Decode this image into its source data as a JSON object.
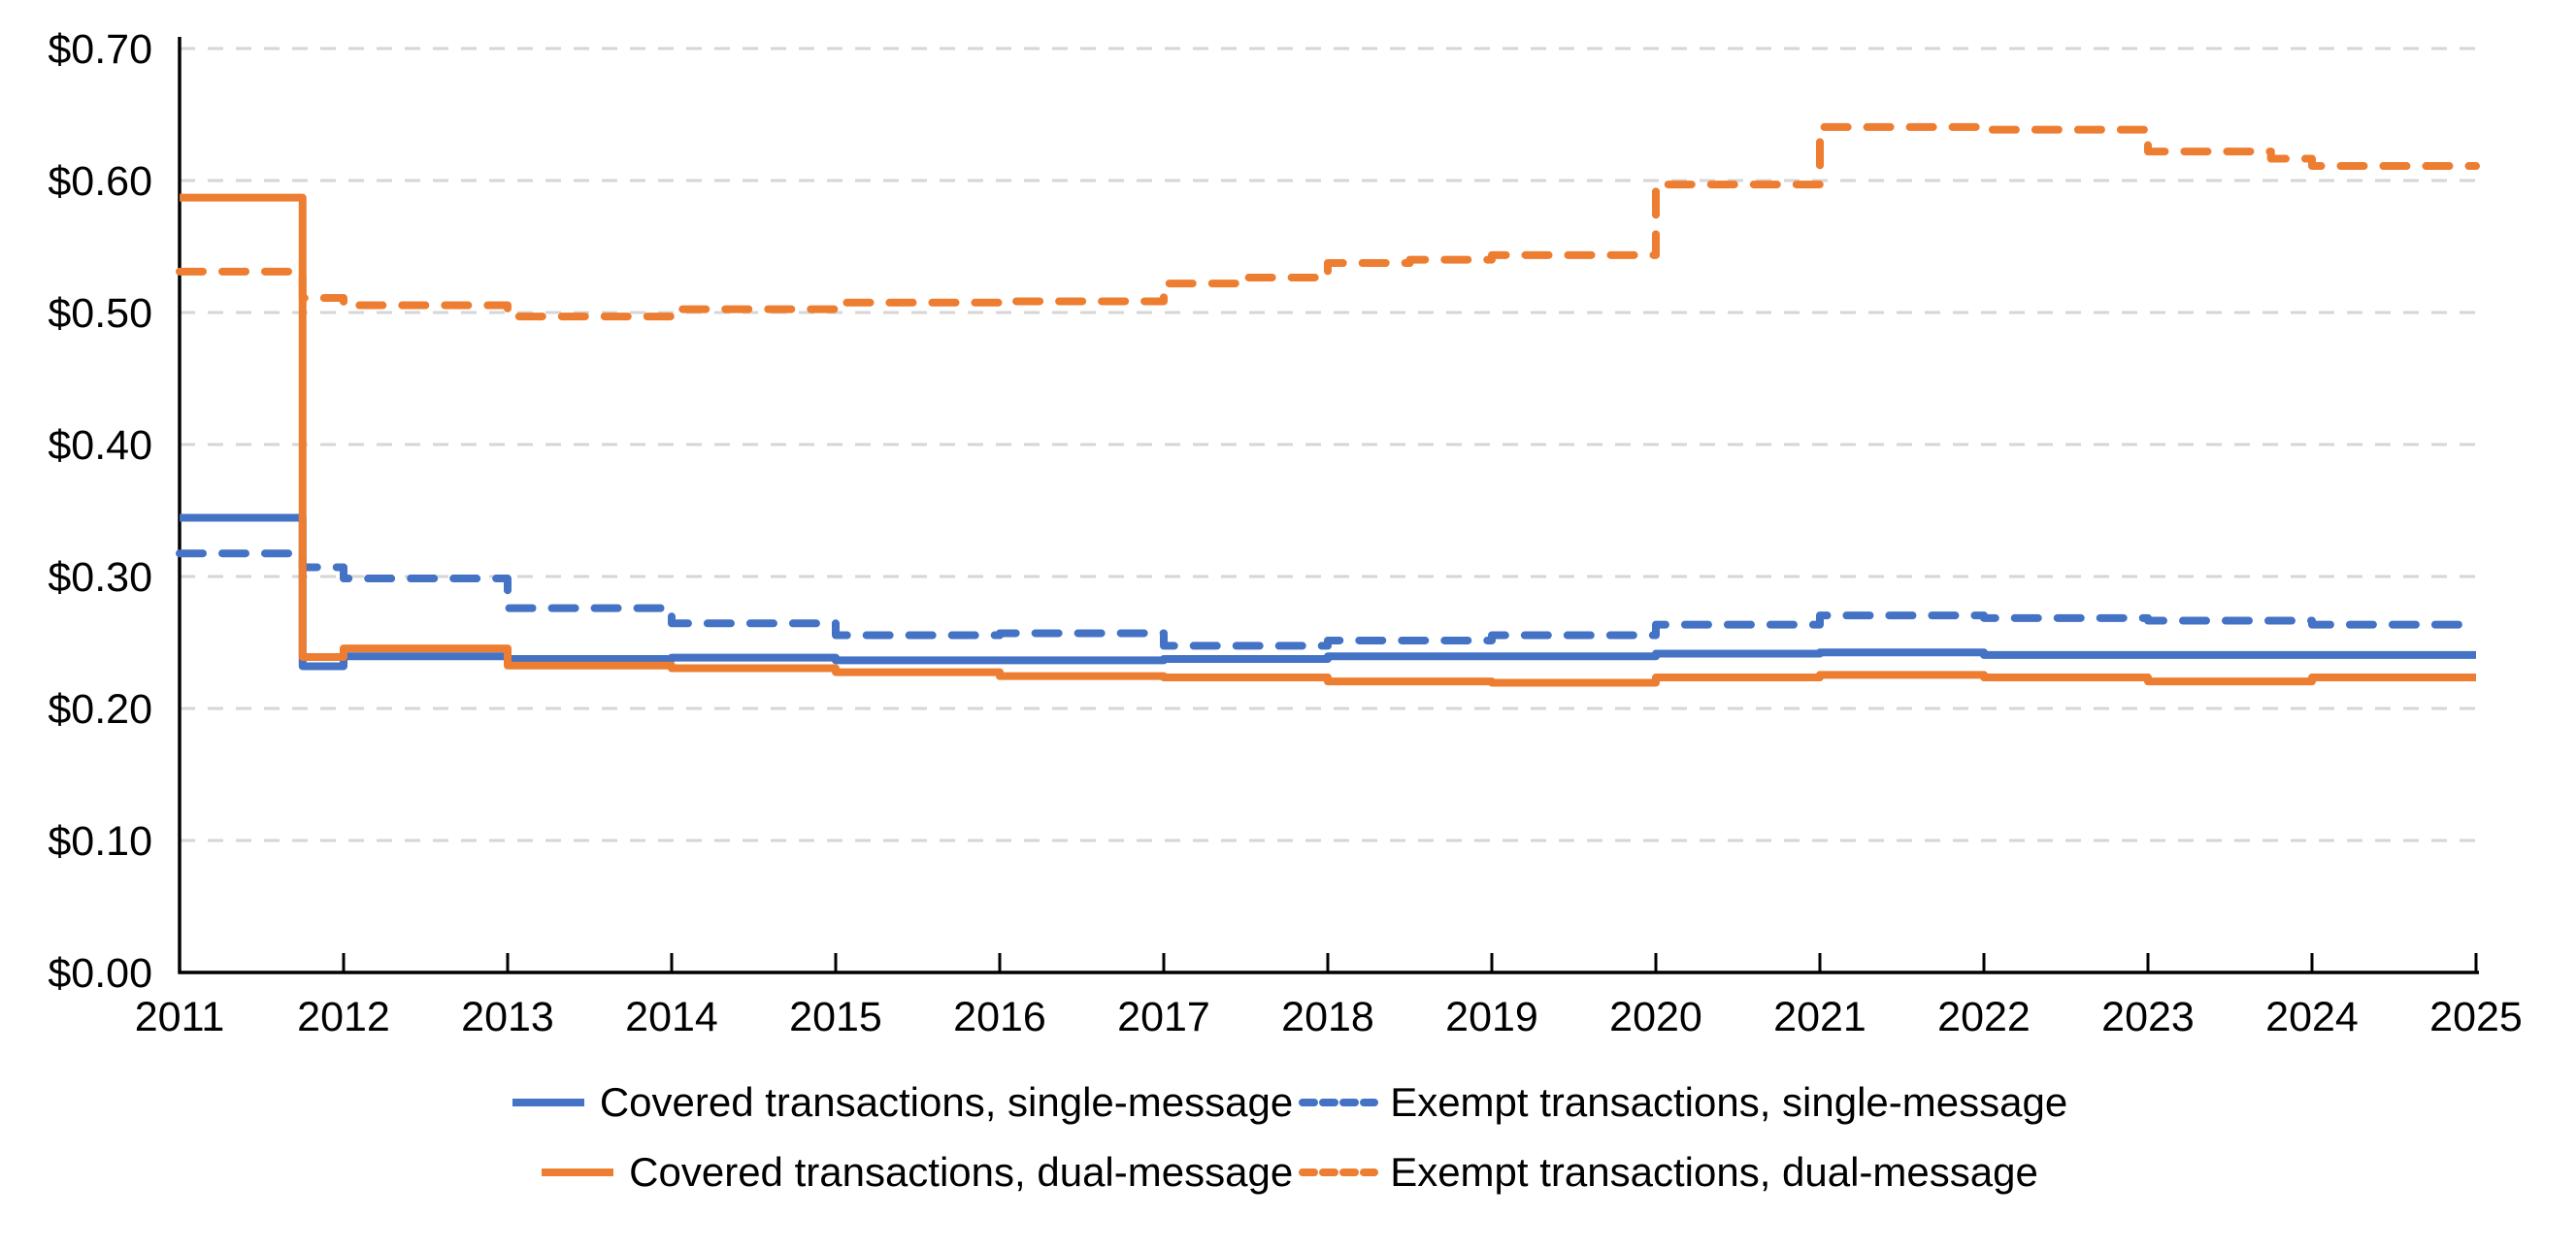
{
  "chart_data": {
    "type": "line",
    "subtype": "step",
    "title": "",
    "xlabel": "",
    "ylabel": "",
    "x_axis": {
      "min": 2011,
      "max": 2025,
      "tick_labels": [
        "2011",
        "2012",
        "2013",
        "2014",
        "2015",
        "2016",
        "2017",
        "2018",
        "2019",
        "2020",
        "2021",
        "2022",
        "2023",
        "2024",
        "2025"
      ]
    },
    "y_axis": {
      "min": 0.0,
      "max": 0.7,
      "step": 0.1,
      "tick_labels": [
        "$0.00",
        "$0.10",
        "$0.20",
        "$0.30",
        "$0.40",
        "$0.50",
        "$0.60",
        "$0.70"
      ]
    },
    "grid": "horizontal-dashed",
    "legend_position": "bottom",
    "series": [
      {
        "name": "Covered transactions, single-message",
        "color": "#4472C4",
        "style": "solid",
        "steps": [
          [
            2011.0,
            0.3445
          ],
          [
            2011.75,
            0.232
          ],
          [
            2012.0,
            0.2395
          ],
          [
            2013.0,
            0.2375
          ],
          [
            2014.0,
            0.2385
          ],
          [
            2015.0,
            0.2365
          ],
          [
            2017.0,
            0.2375
          ],
          [
            2018.0,
            0.2395
          ],
          [
            2020.0,
            0.2415
          ],
          [
            2021.0,
            0.2425
          ],
          [
            2022.0,
            0.2405
          ]
        ],
        "end_x": 2025
      },
      {
        "name": "Exempt transactions, single-message",
        "color": "#4472C4",
        "style": "dashed",
        "steps": [
          [
            2011.0,
            0.3175
          ],
          [
            2011.75,
            0.307
          ],
          [
            2012.0,
            0.2985
          ],
          [
            2013.0,
            0.276
          ],
          [
            2014.0,
            0.2645
          ],
          [
            2015.0,
            0.2555
          ],
          [
            2016.0,
            0.257
          ],
          [
            2017.0,
            0.2475
          ],
          [
            2018.0,
            0.2515
          ],
          [
            2019.0,
            0.2555
          ],
          [
            2020.0,
            0.2635
          ],
          [
            2021.0,
            0.2705
          ],
          [
            2022.0,
            0.2685
          ],
          [
            2023.0,
            0.2665
          ],
          [
            2024.0,
            0.2635
          ]
        ],
        "end_x": 2025
      },
      {
        "name": "Covered transactions, dual-message",
        "color": "#ED7D31",
        "style": "solid",
        "steps": [
          [
            2011.0,
            0.587
          ],
          [
            2011.75,
            0.239
          ],
          [
            2012.0,
            0.2455
          ],
          [
            2013.0,
            0.2325
          ],
          [
            2014.0,
            0.2305
          ],
          [
            2015.0,
            0.2275
          ],
          [
            2016.0,
            0.2245
          ],
          [
            2017.0,
            0.2235
          ],
          [
            2018.0,
            0.2205
          ],
          [
            2019.0,
            0.2195
          ],
          [
            2020.0,
            0.2235
          ],
          [
            2021.0,
            0.2255
          ],
          [
            2022.0,
            0.2235
          ],
          [
            2023.0,
            0.2205
          ],
          [
            2024.0,
            0.2235
          ]
        ],
        "end_x": 2025
      },
      {
        "name": "Exempt transactions, dual-message",
        "color": "#ED7D31",
        "style": "dashed",
        "steps": [
          [
            2011.0,
            0.531
          ],
          [
            2011.75,
            0.511
          ],
          [
            2012.0,
            0.5055
          ],
          [
            2013.0,
            0.497
          ],
          [
            2014.0,
            0.5025
          ],
          [
            2015.0,
            0.5075
          ],
          [
            2016.0,
            0.5085
          ],
          [
            2017.0,
            0.522
          ],
          [
            2017.5,
            0.5265
          ],
          [
            2018.0,
            0.5375
          ],
          [
            2018.5,
            0.54
          ],
          [
            2019.0,
            0.5435
          ],
          [
            2020.0,
            0.597
          ],
          [
            2021.0,
            0.6405
          ],
          [
            2022.0,
            0.6385
          ],
          [
            2023.0,
            0.622
          ],
          [
            2023.75,
            0.6165
          ],
          [
            2024.0,
            0.611
          ]
        ],
        "end_x": 2025
      }
    ],
    "legend_rows": [
      [
        0,
        1
      ],
      [
        2,
        3
      ]
    ]
  },
  "colors": {
    "blue": "#4472C4",
    "orange": "#ED7D31",
    "gridline": "#D6D6D6",
    "axis": "#000000",
    "text": "#000000"
  }
}
